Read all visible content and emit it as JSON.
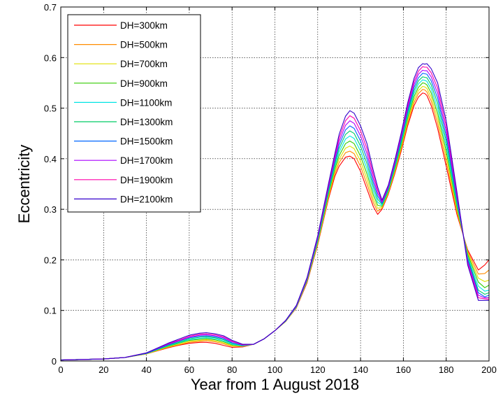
{
  "chart_data": {
    "type": "line",
    "xlabel": "Year from 1 August 2018",
    "ylabel": "Eccentricity",
    "xlim": [
      0,
      200
    ],
    "ylim": [
      0,
      0.7
    ],
    "xticks": [
      0,
      20,
      40,
      60,
      80,
      100,
      120,
      140,
      160,
      180,
      200
    ],
    "yticks": [
      0,
      0.1,
      0.2,
      0.3,
      0.4,
      0.5,
      0.6,
      0.7
    ],
    "grid": true,
    "legend_position": "top-left",
    "x": [
      0,
      10,
      20,
      30,
      40,
      50,
      55,
      60,
      65,
      68,
      72,
      76,
      80,
      85,
      90,
      95,
      100,
      105,
      110,
      115,
      120,
      125,
      128,
      130,
      133,
      135,
      137,
      140,
      143,
      146,
      148,
      150,
      153,
      156,
      159,
      162,
      165,
      167,
      169,
      170,
      171,
      173,
      176,
      180,
      185,
      190,
      195,
      198,
      200
    ],
    "series": [
      {
        "name": "DH=300km",
        "color": "#ff0000",
        "values": [
          0.002,
          0.003,
          0.004,
          0.007,
          0.014,
          0.026,
          0.031,
          0.035,
          0.037,
          0.037,
          0.035,
          0.031,
          0.027,
          0.028,
          0.033,
          0.044,
          0.06,
          0.078,
          0.105,
          0.155,
          0.23,
          0.32,
          0.365,
          0.385,
          0.403,
          0.405,
          0.4,
          0.375,
          0.34,
          0.305,
          0.29,
          0.3,
          0.33,
          0.37,
          0.415,
          0.465,
          0.505,
          0.522,
          0.53,
          0.529,
          0.525,
          0.505,
          0.46,
          0.385,
          0.29,
          0.22,
          0.18,
          0.19,
          0.2
        ]
      },
      {
        "name": "DH=500km",
        "color": "#ff8c00",
        "values": [
          0.002,
          0.003,
          0.004,
          0.007,
          0.014,
          0.027,
          0.032,
          0.037,
          0.039,
          0.04,
          0.038,
          0.034,
          0.029,
          0.029,
          0.033,
          0.044,
          0.06,
          0.078,
          0.106,
          0.157,
          0.232,
          0.323,
          0.37,
          0.392,
          0.412,
          0.415,
          0.41,
          0.385,
          0.35,
          0.313,
          0.296,
          0.302,
          0.332,
          0.373,
          0.419,
          0.47,
          0.511,
          0.529,
          0.537,
          0.536,
          0.532,
          0.514,
          0.47,
          0.395,
          0.295,
          0.217,
          0.172,
          0.173,
          0.18
        ]
      },
      {
        "name": "DH=700km",
        "color": "#e0e000",
        "values": [
          0.002,
          0.003,
          0.004,
          0.007,
          0.014,
          0.028,
          0.033,
          0.039,
          0.041,
          0.042,
          0.04,
          0.036,
          0.03,
          0.029,
          0.033,
          0.044,
          0.06,
          0.078,
          0.106,
          0.158,
          0.234,
          0.326,
          0.375,
          0.399,
          0.421,
          0.425,
          0.42,
          0.395,
          0.36,
          0.32,
          0.302,
          0.304,
          0.334,
          0.376,
          0.423,
          0.475,
          0.517,
          0.535,
          0.543,
          0.542,
          0.539,
          0.522,
          0.48,
          0.405,
          0.3,
          0.214,
          0.164,
          0.157,
          0.16
        ]
      },
      {
        "name": "DH=900km",
        "color": "#33cc00",
        "values": [
          0.002,
          0.003,
          0.004,
          0.007,
          0.015,
          0.029,
          0.035,
          0.041,
          0.043,
          0.044,
          0.042,
          0.038,
          0.032,
          0.03,
          0.033,
          0.044,
          0.06,
          0.079,
          0.107,
          0.159,
          0.236,
          0.33,
          0.38,
          0.406,
          0.43,
          0.435,
          0.43,
          0.405,
          0.37,
          0.328,
          0.308,
          0.306,
          0.336,
          0.379,
          0.427,
          0.48,
          0.523,
          0.541,
          0.55,
          0.549,
          0.546,
          0.53,
          0.49,
          0.415,
          0.305,
          0.211,
          0.156,
          0.145,
          0.15
        ]
      },
      {
        "name": "DH=1100km",
        "color": "#00e5e5",
        "values": [
          0.002,
          0.003,
          0.004,
          0.007,
          0.015,
          0.03,
          0.036,
          0.042,
          0.045,
          0.046,
          0.044,
          0.04,
          0.033,
          0.03,
          0.033,
          0.044,
          0.06,
          0.079,
          0.107,
          0.16,
          0.238,
          0.333,
          0.385,
          0.413,
          0.439,
          0.445,
          0.44,
          0.415,
          0.38,
          0.336,
          0.314,
          0.308,
          0.338,
          0.382,
          0.431,
          0.485,
          0.529,
          0.548,
          0.556,
          0.555,
          0.553,
          0.538,
          0.5,
          0.425,
          0.31,
          0.207,
          0.148,
          0.138,
          0.14
        ]
      },
      {
        "name": "DH=1300km",
        "color": "#00cc66",
        "values": [
          0.002,
          0.003,
          0.004,
          0.007,
          0.015,
          0.031,
          0.037,
          0.044,
          0.047,
          0.048,
          0.046,
          0.042,
          0.035,
          0.031,
          0.033,
          0.044,
          0.06,
          0.079,
          0.108,
          0.161,
          0.24,
          0.336,
          0.39,
          0.42,
          0.448,
          0.455,
          0.45,
          0.425,
          0.39,
          0.344,
          0.32,
          0.31,
          0.34,
          0.385,
          0.435,
          0.49,
          0.535,
          0.554,
          0.562,
          0.561,
          0.56,
          0.546,
          0.51,
          0.435,
          0.315,
          0.204,
          0.14,
          0.132,
          0.135
        ]
      },
      {
        "name": "DH=1500km",
        "color": "#0066ff",
        "values": [
          0.002,
          0.003,
          0.004,
          0.007,
          0.015,
          0.032,
          0.039,
          0.046,
          0.049,
          0.05,
          0.048,
          0.044,
          0.036,
          0.031,
          0.033,
          0.044,
          0.06,
          0.079,
          0.108,
          0.162,
          0.242,
          0.34,
          0.395,
          0.427,
          0.457,
          0.465,
          0.46,
          0.435,
          0.4,
          0.352,
          0.326,
          0.312,
          0.342,
          0.388,
          0.439,
          0.495,
          0.541,
          0.56,
          0.569,
          0.568,
          0.567,
          0.554,
          0.52,
          0.445,
          0.32,
          0.201,
          0.135,
          0.127,
          0.13
        ]
      },
      {
        "name": "DH=1700km",
        "color": "#aa00ff",
        "values": [
          0.002,
          0.003,
          0.004,
          0.007,
          0.016,
          0.033,
          0.04,
          0.047,
          0.051,
          0.052,
          0.05,
          0.046,
          0.038,
          0.032,
          0.033,
          0.044,
          0.06,
          0.08,
          0.109,
          0.163,
          0.244,
          0.343,
          0.4,
          0.434,
          0.466,
          0.475,
          0.47,
          0.445,
          0.41,
          0.36,
          0.332,
          0.314,
          0.344,
          0.391,
          0.443,
          0.5,
          0.547,
          0.567,
          0.575,
          0.574,
          0.574,
          0.562,
          0.53,
          0.455,
          0.325,
          0.197,
          0.13,
          0.125,
          0.125
        ]
      },
      {
        "name": "DH=1900km",
        "color": "#ff00aa",
        "values": [
          0.002,
          0.003,
          0.004,
          0.007,
          0.016,
          0.034,
          0.041,
          0.049,
          0.053,
          0.054,
          0.052,
          0.048,
          0.039,
          0.032,
          0.033,
          0.044,
          0.06,
          0.08,
          0.109,
          0.164,
          0.246,
          0.346,
          0.405,
          0.441,
          0.475,
          0.485,
          0.48,
          0.455,
          0.42,
          0.368,
          0.338,
          0.316,
          0.346,
          0.394,
          0.447,
          0.505,
          0.553,
          0.573,
          0.582,
          0.581,
          0.581,
          0.57,
          0.54,
          0.465,
          0.33,
          0.194,
          0.125,
          0.123,
          0.122
        ]
      },
      {
        "name": "DH=2100km",
        "color": "#3300cc",
        "values": [
          0.002,
          0.003,
          0.004,
          0.007,
          0.016,
          0.035,
          0.043,
          0.051,
          0.055,
          0.056,
          0.054,
          0.05,
          0.041,
          0.033,
          0.033,
          0.044,
          0.06,
          0.08,
          0.11,
          0.165,
          0.248,
          0.35,
          0.41,
          0.448,
          0.484,
          0.495,
          0.49,
          0.465,
          0.43,
          0.376,
          0.344,
          0.318,
          0.348,
          0.397,
          0.451,
          0.51,
          0.559,
          0.58,
          0.588,
          0.587,
          0.588,
          0.578,
          0.55,
          0.475,
          0.335,
          0.19,
          0.12,
          0.12,
          0.12
        ]
      }
    ]
  }
}
